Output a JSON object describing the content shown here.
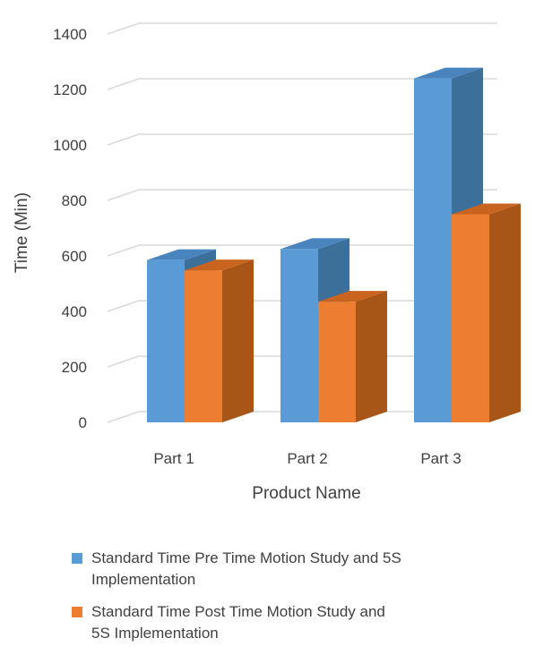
{
  "chart_data": {
    "type": "bar",
    "style": "3d-clustered-column",
    "categories": [
      "Part 1",
      "Part 2",
      "Part 3"
    ],
    "series": [
      {
        "name": "Standard Time Pre Time Motion Study and 5S Implementation",
        "color": "#5b9bd5",
        "side_color": "#3d6f9b",
        "top_color": "#4a84bf",
        "values": [
          585,
          625,
          1240
        ]
      },
      {
        "name": "Standard Time Post Time Motion Study and 5S Implementation",
        "color": "#ed7d31",
        "side_color": "#a85518",
        "top_color": "#c8641f",
        "values": [
          548,
          435,
          750
        ]
      }
    ],
    "title": "",
    "xlabel": "Product Name",
    "ylabel": "Time (Min)",
    "ylim": [
      0,
      1400
    ],
    "yticks": [
      0,
      200,
      400,
      600,
      800,
      1000,
      1200,
      1400
    ],
    "grid": true,
    "grid_color": "#d9d9d9",
    "legend_position": "bottom"
  },
  "legend": {
    "items": [
      {
        "line1": "Standard Time Pre Time Motion Study and 5S",
        "line2": "Implementation"
      },
      {
        "line1": "Standard Time Post Time Motion Study and",
        "line2": "5S Implementation"
      }
    ]
  }
}
